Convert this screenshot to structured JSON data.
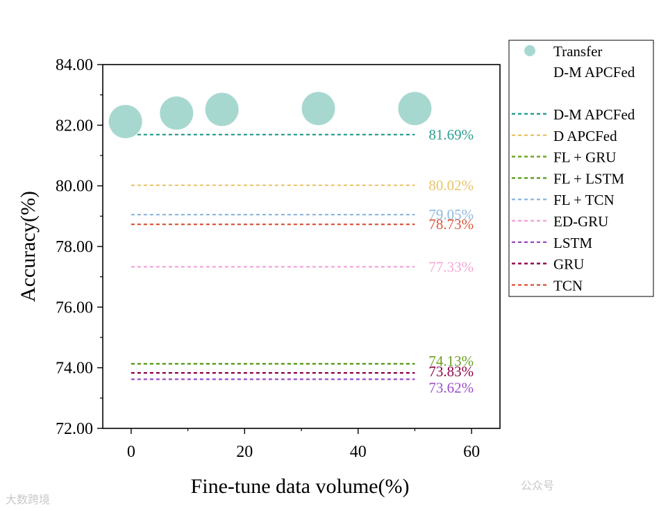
{
  "chart_data": {
    "type": "scatter+line",
    "xlabel": "Fine-tune data volume(%)",
    "ylabel": "Accuracy(%)",
    "xlim": [
      -5,
      65
    ],
    "ylim": [
      72,
      84
    ],
    "x_ticks": [
      "0",
      "20",
      "40",
      "60"
    ],
    "y_ticks": [
      "72.00",
      "74.00",
      "76.00",
      "78.00",
      "80.00",
      "82.00",
      "84.00"
    ],
    "scatter_series": {
      "name": "Transfer D-M APCFed",
      "name_line1": "Transfer",
      "name_line2": "D-M APCFed",
      "color": "#a7d8d0",
      "points": [
        {
          "x": -1,
          "y": 82.12
        },
        {
          "x": 8,
          "y": 82.4
        },
        {
          "x": 16,
          "y": 82.52
        },
        {
          "x": 33,
          "y": 82.55
        },
        {
          "x": 50,
          "y": 82.55
        }
      ]
    },
    "baselines": [
      {
        "name": "D-M APCFed",
        "value": 81.69,
        "label": "81.69%",
        "color": "#2a9d8f"
      },
      {
        "name": "D APCFed",
        "value": 80.02,
        "label": "80.02%",
        "color": "#e9c46a"
      },
      {
        "name": "FL  + GRU",
        "value": 74.13,
        "label": "74.13%",
        "color": "#6aa121"
      },
      {
        "name": "FL  + LSTM",
        "value": 74.13,
        "label": "",
        "color": "#5a9a1f"
      },
      {
        "name": "FL  + TCN",
        "value": 79.05,
        "label": "79.05%",
        "color": "#8fb8de"
      },
      {
        "name": "ED-GRU",
        "value": 77.33,
        "label": "77.33%",
        "color": "#f4a6d7"
      },
      {
        "name": "LSTM",
        "value": 73.62,
        "label": "73.62%",
        "color": "#9b4dca"
      },
      {
        "name": "GRU",
        "value": 73.83,
        "label": "73.83%",
        "color": "#8b0045"
      },
      {
        "name": "TCN",
        "value": 78.73,
        "label": "78.73%",
        "color": "#d9573b"
      }
    ],
    "baseline_x_range": [
      0,
      50
    ],
    "legend_position": "right-outside"
  },
  "watermarks": {
    "left": "大数跨境",
    "right": "公众号"
  }
}
